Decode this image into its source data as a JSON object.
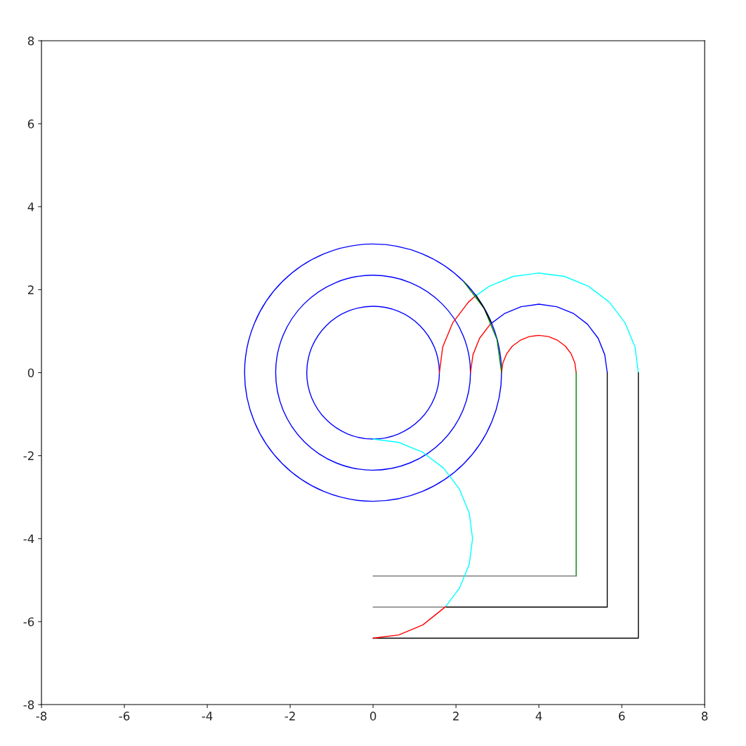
{
  "chart_data": {
    "type": "line",
    "xlim": [
      -8,
      8
    ],
    "ylim": [
      -8,
      8
    ],
    "xticks": [
      -8,
      -6,
      -4,
      -2,
      0,
      2,
      4,
      6,
      8
    ],
    "yticks": [
      -8,
      -6,
      -4,
      -2,
      0,
      2,
      4,
      6,
      8
    ],
    "grid": false,
    "marker": "none",
    "line_style": "solid",
    "series": [
      {
        "color": "#0000ff",
        "x": [
          2.83,
          3.18,
          3.57,
          4,
          4.43,
          4.83,
          5.17,
          5.43,
          5.59,
          5.65
        ],
        "values": [
          1.17,
          1.43,
          1.59,
          1.65,
          1.59,
          1.43,
          1.17,
          0.83,
          0.43,
          0
        ]
      },
      {
        "color": "#ff0000",
        "x": [
          3.1,
          3.13,
          3.22,
          3.36,
          3.55,
          3.77,
          4,
          4.23,
          4.45,
          4.64,
          4.78,
          4.87,
          4.9
        ],
        "values": [
          0,
          0.23,
          0.45,
          0.64,
          0.78,
          0.87,
          0.9,
          0.87,
          0.78,
          0.64,
          0.45,
          0.23,
          0
        ]
      },
      {
        "color": "#ff0000",
        "x": [
          2.35,
          2.41,
          2.57,
          2.83
        ],
        "values": [
          0,
          0.43,
          0.83,
          1.17
        ]
      },
      {
        "color": "#ff0000",
        "x": [
          1.6,
          1.68,
          1.92,
          2.3,
          2.46
        ],
        "values": [
          0,
          0.62,
          1.2,
          1.7,
          1.84
        ]
      },
      {
        "color": "#00ffff",
        "x": [
          2.46,
          2.8,
          3.38,
          4,
          4.62,
          5.2,
          5.7,
          6.08,
          6.32,
          6.4
        ],
        "values": [
          1.84,
          2.08,
          2.32,
          2.4,
          2.32,
          2.08,
          1.7,
          1.2,
          0.62,
          0
        ]
      },
      {
        "color": "#008000",
        "x": [
          3.1,
          2.99,
          2.68,
          2.19
        ],
        "values": [
          0,
          0.8,
          1.55,
          2.19
        ]
      },
      {
        "color": "#000000",
        "x": [
          2.85,
          2.68,
          2.48
        ],
        "values": [
          1.21,
          1.55,
          1.87
        ]
      },
      {
        "color": "#008000",
        "x": [
          4.9,
          4.9
        ],
        "values": [
          0,
          -4.9
        ]
      },
      {
        "color": "#808080",
        "x": [
          0,
          4.9
        ],
        "values": [
          -4.9,
          -4.9
        ]
      },
      {
        "color": "#000000",
        "x": [
          5.65,
          5.65,
          1.75
        ],
        "values": [
          0,
          -5.65,
          -5.65
        ]
      },
      {
        "color": "#808080",
        "x": [
          0,
          1.75
        ],
        "values": [
          -5.65,
          -5.65
        ]
      },
      {
        "color": "#000000",
        "x": [
          6.4,
          6.4,
          0
        ],
        "values": [
          0,
          -6.4,
          -6.4
        ]
      },
      {
        "color": "#00ffff",
        "x": [
          0,
          0.62,
          1.2,
          1.7,
          2.08,
          2.32,
          2.4,
          2.32,
          2.08,
          1.75
        ],
        "values": [
          -1.6,
          -1.68,
          -1.92,
          -2.3,
          -2.8,
          -3.38,
          -4,
          -4.62,
          -5.2,
          -5.64
        ]
      },
      {
        "color": "#ff0000",
        "x": [
          1.75,
          1.2,
          0.62,
          0
        ],
        "values": [
          -5.64,
          -6.08,
          -6.32,
          -6.4
        ]
      }
    ]
  }
}
